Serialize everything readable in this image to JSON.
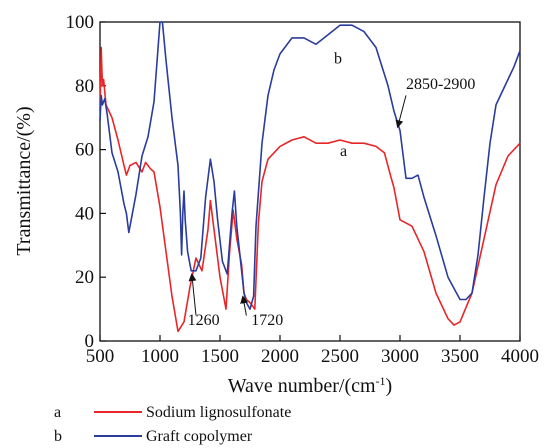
{
  "chart_data": {
    "type": "line",
    "xlabel": "Wave number/(cm",
    "xlabel_sup": "-1",
    "xlabel_close": ")",
    "ylabel": "Transmittance/(%)",
    "xlim": [
      500,
      4000
    ],
    "ylim": [
      0,
      100
    ],
    "xticks": [
      500,
      1000,
      1500,
      2000,
      2500,
      3000,
      3500,
      4000
    ],
    "yticks": [
      0,
      20,
      40,
      60,
      80,
      100
    ],
    "grid": false,
    "series": [
      {
        "name": "Sodium lignosulfonate",
        "key": "a",
        "color": "#e8262a",
        "points": [
          [
            500,
            72
          ],
          [
            510,
            92
          ],
          [
            520,
            80
          ],
          [
            530,
            82
          ],
          [
            540,
            78
          ],
          [
            550,
            74
          ],
          [
            600,
            70
          ],
          [
            650,
            63
          ],
          [
            700,
            55
          ],
          [
            720,
            52
          ],
          [
            750,
            55
          ],
          [
            800,
            56
          ],
          [
            850,
            53
          ],
          [
            880,
            56
          ],
          [
            920,
            54
          ],
          [
            950,
            53
          ],
          [
            1000,
            42
          ],
          [
            1050,
            28
          ],
          [
            1100,
            14
          ],
          [
            1150,
            3
          ],
          [
            1200,
            6
          ],
          [
            1250,
            17
          ],
          [
            1300,
            26
          ],
          [
            1350,
            22
          ],
          [
            1400,
            35
          ],
          [
            1420,
            44
          ],
          [
            1450,
            35
          ],
          [
            1500,
            20
          ],
          [
            1550,
            10
          ],
          [
            1580,
            28
          ],
          [
            1610,
            41
          ],
          [
            1640,
            32
          ],
          [
            1680,
            24
          ],
          [
            1700,
            15
          ],
          [
            1720,
            13
          ],
          [
            1750,
            12
          ],
          [
            1790,
            10
          ],
          [
            1820,
            37
          ],
          [
            1850,
            50
          ],
          [
            1900,
            57
          ],
          [
            2000,
            61
          ],
          [
            2100,
            63
          ],
          [
            2200,
            64
          ],
          [
            2300,
            62
          ],
          [
            2400,
            62
          ],
          [
            2500,
            63
          ],
          [
            2600,
            62
          ],
          [
            2700,
            62
          ],
          [
            2800,
            61
          ],
          [
            2870,
            59
          ],
          [
            2920,
            52
          ],
          [
            2950,
            48
          ],
          [
            2980,
            42
          ],
          [
            3000,
            38
          ],
          [
            3100,
            36
          ],
          [
            3200,
            28
          ],
          [
            3300,
            15
          ],
          [
            3400,
            7
          ],
          [
            3450,
            5
          ],
          [
            3500,
            6
          ],
          [
            3600,
            15
          ],
          [
            3700,
            32
          ],
          [
            3800,
            49
          ],
          [
            3900,
            58
          ],
          [
            4000,
            62
          ]
        ]
      },
      {
        "name": "Graft copolymer",
        "key": "b",
        "color": "#2a3d9c",
        "points": [
          [
            500,
            69
          ],
          [
            510,
            77
          ],
          [
            520,
            74
          ],
          [
            540,
            76
          ],
          [
            560,
            71
          ],
          [
            600,
            59
          ],
          [
            650,
            53
          ],
          [
            700,
            43
          ],
          [
            720,
            40
          ],
          [
            740,
            34
          ],
          [
            760,
            38
          ],
          [
            800,
            46
          ],
          [
            850,
            58
          ],
          [
            900,
            64
          ],
          [
            950,
            75
          ],
          [
            980,
            90
          ],
          [
            1000,
            100
          ],
          [
            1020,
            100
          ],
          [
            1050,
            88
          ],
          [
            1100,
            70
          ],
          [
            1150,
            55
          ],
          [
            1170,
            40
          ],
          [
            1180,
            27
          ],
          [
            1190,
            40
          ],
          [
            1200,
            47
          ],
          [
            1210,
            38
          ],
          [
            1230,
            28
          ],
          [
            1260,
            22
          ],
          [
            1300,
            22
          ],
          [
            1340,
            26
          ],
          [
            1380,
            45
          ],
          [
            1420,
            57
          ],
          [
            1450,
            50
          ],
          [
            1480,
            38
          ],
          [
            1520,
            25
          ],
          [
            1560,
            21
          ],
          [
            1600,
            40
          ],
          [
            1620,
            47
          ],
          [
            1640,
            36
          ],
          [
            1680,
            22
          ],
          [
            1700,
            15
          ],
          [
            1720,
            12
          ],
          [
            1750,
            10
          ],
          [
            1780,
            14
          ],
          [
            1800,
            36
          ],
          [
            1850,
            62
          ],
          [
            1900,
            77
          ],
          [
            1950,
            85
          ],
          [
            2000,
            90
          ],
          [
            2100,
            95
          ],
          [
            2200,
            95
          ],
          [
            2300,
            93
          ],
          [
            2400,
            96
          ],
          [
            2500,
            99
          ],
          [
            2600,
            99
          ],
          [
            2700,
            97
          ],
          [
            2800,
            92
          ],
          [
            2900,
            80
          ],
          [
            2950,
            72
          ],
          [
            3000,
            66
          ],
          [
            3050,
            51
          ],
          [
            3100,
            51
          ],
          [
            3150,
            52
          ],
          [
            3200,
            45
          ],
          [
            3300,
            33
          ],
          [
            3400,
            20
          ],
          [
            3500,
            13
          ],
          [
            3550,
            13
          ],
          [
            3600,
            15
          ],
          [
            3650,
            27
          ],
          [
            3700,
            45
          ],
          [
            3750,
            62
          ],
          [
            3800,
            74
          ],
          [
            3900,
            82
          ],
          [
            3950,
            86
          ],
          [
            4000,
            91
          ]
        ]
      }
    ],
    "annotations": [
      {
        "text": "b",
        "x": 2450,
        "y": 87
      },
      {
        "text": "a",
        "x": 2500,
        "y": 58
      },
      {
        "text": "2850-2900",
        "x": 3050,
        "y": 79,
        "arrow_from": [
          3050,
          77
        ],
        "arrow_to": [
          2980,
          67
        ]
      },
      {
        "text": "1260",
        "x": 1230,
        "y": 5,
        "arrow_from": [
          1300,
          8
        ],
        "arrow_to": [
          1265,
          21
        ]
      },
      {
        "text": "1720",
        "x": 1760,
        "y": 5,
        "arrow_from": [
          1720,
          8
        ],
        "arrow_to": [
          1690,
          14
        ]
      }
    ],
    "legend": {
      "position": "bottom",
      "items": [
        {
          "key": "a",
          "label": "Sodium lignosulfonate"
        },
        {
          "key": "b",
          "label": "Graft copolymer"
        }
      ]
    }
  }
}
